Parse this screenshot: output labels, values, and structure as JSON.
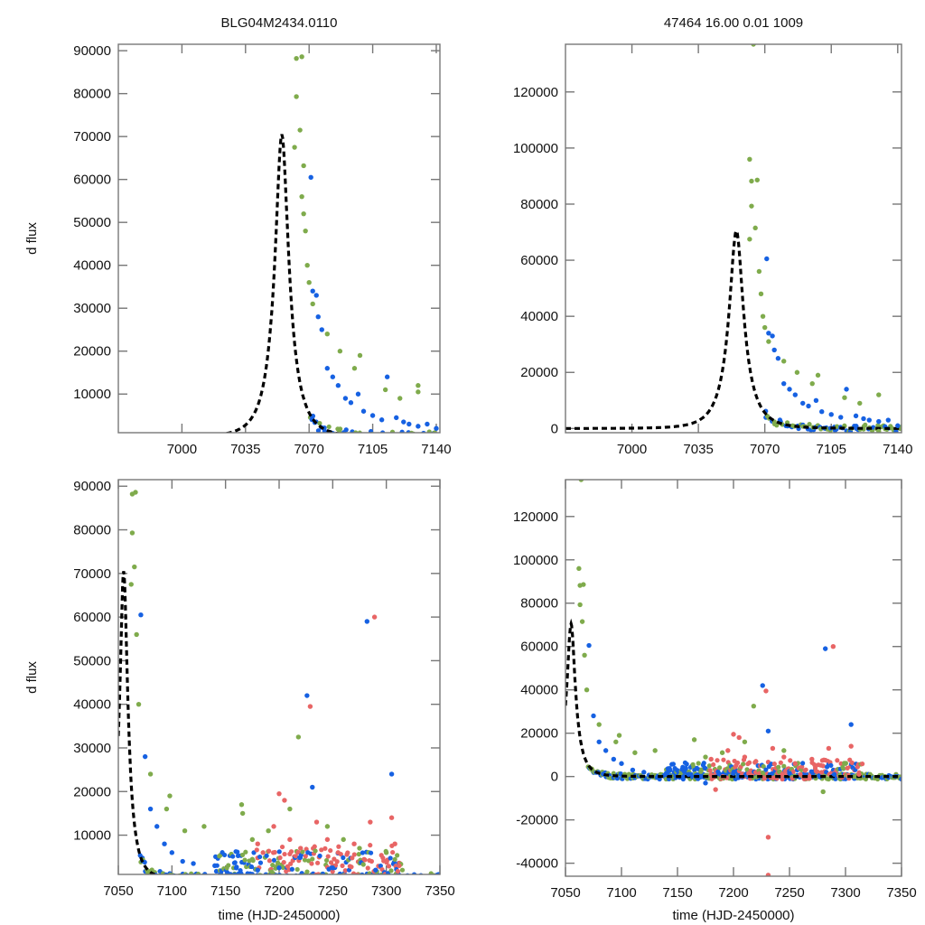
{
  "figure": {
    "title_left": "BLG04M2434.0110",
    "title_right": "47464  16.00  0.01  1009",
    "ylabel": "d flux",
    "xlabel": "time (HJD-2450000)"
  },
  "colors": {
    "green": "#7fab4c",
    "blue": "#1661e2",
    "red": "#e86565",
    "model": "#000000",
    "frame": "#777777"
  },
  "model": {
    "t0": 7055,
    "peak": 70500,
    "tE": 12,
    "baseline": 0
  },
  "chart_data": [
    {
      "id": "top-left",
      "type": "scatter",
      "title": "BLG04M2434.0110",
      "xlabel": "",
      "ylabel": "d flux",
      "xlim": [
        6965,
        7142
      ],
      "ylim": [
        1000,
        91500
      ],
      "xticks": [
        7000,
        7035,
        7070,
        7105,
        7140
      ],
      "yticks": [
        10000,
        20000,
        30000,
        40000,
        50000,
        60000,
        70000,
        80000,
        90000
      ],
      "series": [
        {
          "name": "green",
          "color": "green",
          "points": [
            [
              7063,
              88200
            ],
            [
              7066,
              88600
            ],
            [
              7063,
              79300
            ],
            [
              7065,
              71500
            ],
            [
              7062,
              67500
            ],
            [
              7067,
              63200
            ],
            [
              7066,
              56000
            ],
            [
              7067,
              52000
            ],
            [
              7068,
              48000
            ],
            [
              7069,
              40000
            ],
            [
              7070,
              36000
            ],
            [
              7072,
              31000
            ],
            [
              7080,
              24000
            ],
            [
              7087,
              20000
            ],
            [
              7095,
              16000
            ],
            [
              7098,
              19000
            ],
            [
              7112,
              11000
            ],
            [
              7120,
              9000
            ],
            [
              7130,
              12000
            ],
            [
              7130,
              10500
            ]
          ]
        },
        {
          "name": "blue",
          "color": "blue",
          "points": [
            [
              7071,
              60500
            ],
            [
              7072,
              34000
            ],
            [
              7074,
              33000
            ],
            [
              7075,
              28000
            ],
            [
              7077,
              25000
            ],
            [
              7080,
              16000
            ],
            [
              7083,
              14000
            ],
            [
              7086,
              12000
            ],
            [
              7090,
              9000
            ],
            [
              7093,
              8000
            ],
            [
              7097,
              10000
            ],
            [
              7100,
              6000
            ],
            [
              7105,
              5000
            ],
            [
              7110,
              4000
            ],
            [
              7113,
              14000
            ],
            [
              7118,
              4500
            ],
            [
              7122,
              3500
            ],
            [
              7125,
              3000
            ],
            [
              7130,
              2500
            ],
            [
              7135,
              3000
            ],
            [
              7140,
              2000
            ]
          ]
        }
      ]
    },
    {
      "id": "top-right",
      "type": "scatter",
      "title": "47464  16.00  0.01  1009",
      "xlabel": "",
      "ylabel": "",
      "xlim": [
        6965,
        7142
      ],
      "ylim": [
        -1500,
        137000
      ],
      "xticks": [
        7000,
        7035,
        7070,
        7105,
        7140
      ],
      "yticks": [
        0,
        20000,
        40000,
        60000,
        80000,
        100000,
        120000
      ],
      "series": [
        {
          "name": "green",
          "color": "green",
          "points": [
            [
              7064,
              137000
            ],
            [
              7062,
              96000
            ],
            [
              7063,
              88200
            ],
            [
              7066,
              88600
            ],
            [
              7063,
              79300
            ],
            [
              7065,
              71500
            ],
            [
              7062,
              67500
            ],
            [
              7067,
              56000
            ],
            [
              7068,
              48000
            ],
            [
              7069,
              40000
            ],
            [
              7070,
              36000
            ],
            [
              7072,
              31000
            ],
            [
              7080,
              24000
            ],
            [
              7087,
              20000
            ],
            [
              7095,
              16000
            ],
            [
              7098,
              19000
            ],
            [
              7112,
              11000
            ],
            [
              7120,
              9000
            ],
            [
              7130,
              12000
            ],
            [
              7130,
              -1000
            ]
          ]
        },
        {
          "name": "blue",
          "color": "blue",
          "points": [
            [
              7071,
              60500
            ],
            [
              7072,
              34000
            ],
            [
              7074,
              33000
            ],
            [
              7075,
              28000
            ],
            [
              7077,
              25000
            ],
            [
              7080,
              16000
            ],
            [
              7083,
              14000
            ],
            [
              7086,
              12000
            ],
            [
              7090,
              9000
            ],
            [
              7093,
              8000
            ],
            [
              7097,
              10000
            ],
            [
              7100,
              6000
            ],
            [
              7105,
              5000
            ],
            [
              7110,
              4000
            ],
            [
              7113,
              14000
            ],
            [
              7118,
              4500
            ],
            [
              7122,
              3500
            ],
            [
              7125,
              3000
            ],
            [
              7130,
              2500
            ],
            [
              7135,
              3000
            ],
            [
              7140,
              1000
            ]
          ]
        }
      ]
    },
    {
      "id": "bottom-left",
      "type": "scatter",
      "title": "",
      "xlabel": "time (HJD-2450000)",
      "ylabel": "d flux",
      "xlim": [
        7050,
        7350
      ],
      "ylim": [
        1000,
        91500
      ],
      "xticks": [
        7050,
        7100,
        7150,
        7200,
        7250,
        7300,
        7350
      ],
      "yticks": [
        10000,
        20000,
        30000,
        40000,
        50000,
        60000,
        70000,
        80000,
        90000
      ],
      "series": [
        {
          "name": "green",
          "color": "green",
          "points": [
            [
              7063,
              88200
            ],
            [
              7066,
              88600
            ],
            [
              7063,
              79300
            ],
            [
              7065,
              71500
            ],
            [
              7062,
              67500
            ],
            [
              7067,
              56000
            ],
            [
              7069,
              40000
            ],
            [
              7080,
              24000
            ],
            [
              7095,
              16000
            ],
            [
              7098,
              19000
            ],
            [
              7112,
              11000
            ],
            [
              7130,
              12000
            ],
            [
              7165,
              17000
            ],
            [
              7166,
              15000
            ],
            [
              7175,
              9000
            ],
            [
              7190,
              11000
            ],
            [
              7210,
              16000
            ],
            [
              7218,
              32500
            ],
            [
              7245,
              12000
            ],
            [
              7260,
              9000
            ],
            [
              7275,
              7000
            ],
            [
              7300,
              6000
            ]
          ]
        },
        {
          "name": "blue",
          "color": "blue",
          "points": [
            [
              7071,
              60500
            ],
            [
              7075,
              28000
            ],
            [
              7080,
              16000
            ],
            [
              7086,
              12000
            ],
            [
              7093,
              8000
            ],
            [
              7100,
              6000
            ],
            [
              7110,
              4000
            ],
            [
              7120,
              3500
            ],
            [
              7140,
              3000
            ],
            [
              7160,
              2500
            ],
            [
              7180,
              2000
            ],
            [
              7200,
              2500
            ],
            [
              7226,
              42000
            ],
            [
              7231,
              21000
            ],
            [
              7250,
              2500
            ],
            [
              7282,
              59000
            ],
            [
              7305,
              24000
            ],
            [
              7290,
              2000
            ]
          ]
        },
        {
          "name": "red",
          "color": "red",
          "points": [
            [
              7180,
              8000
            ],
            [
              7185,
              6000
            ],
            [
              7195,
              12000
            ],
            [
              7200,
              19500
            ],
            [
              7205,
              18000
            ],
            [
              7210,
              9000
            ],
            [
              7220,
              7000
            ],
            [
              7229,
              39500
            ],
            [
              7235,
              13000
            ],
            [
              7245,
              9000
            ],
            [
              7255,
              6000
            ],
            [
              7270,
              8000
            ],
            [
              7285,
              13000
            ],
            [
              7289,
              60000
            ],
            [
              7305,
              14000
            ],
            [
              7308,
              8000
            ],
            [
              7312,
              3000
            ]
          ]
        }
      ]
    },
    {
      "id": "bottom-right",
      "type": "scatter",
      "title": "",
      "xlabel": "time (HJD-2450000)",
      "ylabel": "",
      "xlim": [
        7050,
        7350
      ],
      "ylim": [
        -46000,
        137000
      ],
      "xticks": [
        7050,
        7100,
        7150,
        7200,
        7250,
        7300,
        7350
      ],
      "yticks": [
        -40000,
        -20000,
        0,
        20000,
        40000,
        60000,
        80000,
        100000,
        120000
      ],
      "series": [
        {
          "name": "green",
          "color": "green",
          "points": [
            [
              7064,
              137000
            ],
            [
              7062,
              96000
            ],
            [
              7063,
              88200
            ],
            [
              7066,
              88600
            ],
            [
              7063,
              79300
            ],
            [
              7065,
              71500
            ],
            [
              7067,
              56000
            ],
            [
              7069,
              40000
            ],
            [
              7080,
              24000
            ],
            [
              7095,
              16000
            ],
            [
              7098,
              19000
            ],
            [
              7112,
              11000
            ],
            [
              7130,
              12000
            ],
            [
              7165,
              17000
            ],
            [
              7175,
              9000
            ],
            [
              7190,
              11000
            ],
            [
              7210,
              16000
            ],
            [
              7218,
              32500
            ],
            [
              7245,
              12000
            ],
            [
              7280,
              -7000
            ],
            [
              7300,
              6000
            ]
          ]
        },
        {
          "name": "blue",
          "color": "blue",
          "points": [
            [
              7071,
              60500
            ],
            [
              7075,
              28000
            ],
            [
              7080,
              16000
            ],
            [
              7086,
              12000
            ],
            [
              7093,
              8000
            ],
            [
              7100,
              6000
            ],
            [
              7110,
              3000
            ],
            [
              7120,
              2000
            ],
            [
              7140,
              1500
            ],
            [
              7160,
              1000
            ],
            [
              7175,
              -3000
            ],
            [
              7200,
              1500
            ],
            [
              7226,
              42000
            ],
            [
              7231,
              21000
            ],
            [
              7250,
              1500
            ],
            [
              7282,
              59000
            ],
            [
              7305,
              24000
            ],
            [
              7290,
              1000
            ]
          ]
        },
        {
          "name": "red",
          "color": "red",
          "points": [
            [
              7180,
              8000
            ],
            [
              7184,
              -6000
            ],
            [
              7195,
              12000
            ],
            [
              7200,
              19500
            ],
            [
              7205,
              18000
            ],
            [
              7210,
              9000
            ],
            [
              7220,
              7000
            ],
            [
              7229,
              39500
            ],
            [
              7231,
              -28000
            ],
            [
              7231,
              -45500
            ],
            [
              7235,
              13000
            ],
            [
              7245,
              9000
            ],
            [
              7255,
              6000
            ],
            [
              7270,
              8000
            ],
            [
              7285,
              13000
            ],
            [
              7289,
              60000
            ],
            [
              7305,
              14000
            ],
            [
              7312,
              1000
            ]
          ]
        }
      ]
    }
  ]
}
